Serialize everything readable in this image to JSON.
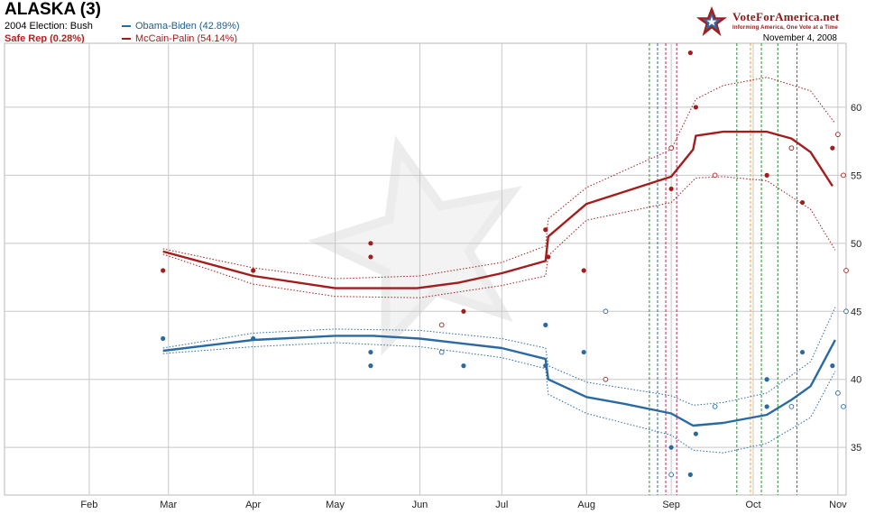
{
  "header": {
    "title": "ALASKA (3)",
    "prev_election": "2004 Election: Bush",
    "rating": "Safe Rep (0.28%)",
    "date": "November 4, 2008"
  },
  "logo": {
    "name": "VoteForAmerica.net",
    "tagline": "Informing America, One Vote at a Time"
  },
  "colors": {
    "dem": "#2b6aa0",
    "rep": "#a31d1d",
    "grid": "#c8c8c8",
    "vline_green": "#2e8b3a",
    "vline_blue": "#2b6aa0",
    "vline_red": "#b0305a",
    "vline_orange": "#f0a020"
  },
  "chart_data": {
    "type": "line",
    "x_axis": {
      "type": "date",
      "range": [
        "2008-01-01",
        "2008-11-04"
      ],
      "tick_labels": [
        "Feb",
        "Mar",
        "Apr",
        "May",
        "Jun",
        "Jul",
        "Aug",
        "Sep",
        "Oct",
        "Nov"
      ],
      "tick_dates": [
        "2008-02-01",
        "2008-03-01",
        "2008-04-01",
        "2008-05-01",
        "2008-06-01",
        "2008-07-01",
        "2008-08-01",
        "2008-09-01",
        "2008-10-01",
        "2008-11-01"
      ]
    },
    "y_axis": {
      "range": [
        31.5,
        64.7
      ],
      "ticks": [
        35,
        40,
        45,
        50,
        55,
        60
      ],
      "position": "right"
    },
    "grid": true,
    "vertical_event_lines": [
      {
        "date": "2008-08-24",
        "color": "green"
      },
      {
        "date": "2008-08-27",
        "color": "blue"
      },
      {
        "date": "2008-08-30",
        "color": "red"
      },
      {
        "date": "2008-09-03",
        "color": "red"
      },
      {
        "date": "2008-09-25",
        "color": "green"
      },
      {
        "date": "2008-09-30",
        "color": "orange"
      },
      {
        "date": "2008-10-04",
        "color": "green"
      },
      {
        "date": "2008-10-10",
        "color": "green"
      },
      {
        "date": "2008-10-17",
        "color": "green"
      }
    ],
    "series": [
      {
        "name": "Obama-Biden (42.89%)",
        "party": "dem",
        "trend": [
          [
            "2008-02-28",
            42.1
          ],
          [
            "2008-04-01",
            42.9
          ],
          [
            "2008-05-01",
            43.2
          ],
          [
            "2008-05-15",
            43.2
          ],
          [
            "2008-06-01",
            43.0
          ],
          [
            "2008-07-01",
            42.3
          ],
          [
            "2008-07-17",
            41.5
          ],
          [
            "2008-07-18",
            40.0
          ],
          [
            "2008-08-01",
            38.7
          ],
          [
            "2008-08-15",
            38.2
          ],
          [
            "2008-09-01",
            37.5
          ],
          [
            "2008-09-09",
            36.6
          ],
          [
            "2008-09-20",
            36.8
          ],
          [
            "2008-10-06",
            37.4
          ],
          [
            "2008-10-15",
            38.5
          ],
          [
            "2008-10-22",
            39.5
          ],
          [
            "2008-10-31",
            42.9
          ]
        ],
        "upper": [
          [
            "2008-02-28",
            42.3
          ],
          [
            "2008-04-01",
            43.4
          ],
          [
            "2008-05-01",
            43.7
          ],
          [
            "2008-06-01",
            43.6
          ],
          [
            "2008-07-01",
            43.0
          ],
          [
            "2008-07-17",
            42.3
          ],
          [
            "2008-07-18",
            41.0
          ],
          [
            "2008-08-01",
            39.8
          ],
          [
            "2008-09-01",
            38.8
          ],
          [
            "2008-09-09",
            38.1
          ],
          [
            "2008-09-20",
            38.3
          ],
          [
            "2008-10-06",
            39.0
          ],
          [
            "2008-10-22",
            41.3
          ],
          [
            "2008-10-31",
            45.3
          ]
        ],
        "lower": [
          [
            "2008-02-28",
            41.9
          ],
          [
            "2008-04-01",
            42.4
          ],
          [
            "2008-05-01",
            42.7
          ],
          [
            "2008-06-01",
            42.4
          ],
          [
            "2008-07-01",
            41.6
          ],
          [
            "2008-07-17",
            40.8
          ],
          [
            "2008-07-18",
            38.9
          ],
          [
            "2008-08-01",
            37.5
          ],
          [
            "2008-09-01",
            35.9
          ],
          [
            "2008-09-09",
            34.8
          ],
          [
            "2008-09-20",
            34.6
          ],
          [
            "2008-10-06",
            35.3
          ],
          [
            "2008-10-22",
            37.2
          ],
          [
            "2008-10-31",
            40.6
          ]
        ],
        "polls_filled": [
          [
            "2008-02-28",
            43
          ],
          [
            "2008-04-01",
            43
          ],
          [
            "2008-05-14",
            42
          ],
          [
            "2008-05-14",
            41
          ],
          [
            "2008-06-17",
            41
          ],
          [
            "2008-07-17",
            44
          ],
          [
            "2008-07-17",
            41
          ],
          [
            "2008-07-31",
            42
          ],
          [
            "2008-09-01",
            35
          ],
          [
            "2008-09-08",
            33
          ],
          [
            "2008-09-10",
            36
          ],
          [
            "2008-10-06",
            40
          ],
          [
            "2008-10-06",
            38
          ],
          [
            "2008-10-19",
            42
          ],
          [
            "2008-10-30",
            41
          ]
        ],
        "polls_open": [
          [
            "2008-06-09",
            42
          ],
          [
            "2008-08-08",
            45
          ],
          [
            "2008-09-01",
            33
          ],
          [
            "2008-09-17",
            38
          ],
          [
            "2008-10-15",
            38
          ],
          [
            "2008-11-01",
            39
          ],
          [
            "2008-11-03",
            38
          ],
          [
            "2008-11-04",
            45
          ]
        ]
      },
      {
        "name": "McCain-Palin (54.14%)",
        "party": "rep",
        "trend": [
          [
            "2008-02-28",
            49.4
          ],
          [
            "2008-04-01",
            47.6
          ],
          [
            "2008-05-01",
            46.7
          ],
          [
            "2008-05-31",
            46.7
          ],
          [
            "2008-06-15",
            47.1
          ],
          [
            "2008-07-01",
            47.8
          ],
          [
            "2008-07-17",
            48.7
          ],
          [
            "2008-07-18",
            50.5
          ],
          [
            "2008-08-01",
            52.9
          ],
          [
            "2008-09-01",
            54.9
          ],
          [
            "2008-09-09",
            56.9
          ],
          [
            "2008-09-10",
            57.9
          ],
          [
            "2008-09-20",
            58.2
          ],
          [
            "2008-10-06",
            58.2
          ],
          [
            "2008-10-15",
            57.7
          ],
          [
            "2008-10-22",
            56.7
          ],
          [
            "2008-10-30",
            54.2
          ]
        ],
        "upper": [
          [
            "2008-02-28",
            49.6
          ],
          [
            "2008-04-01",
            48.2
          ],
          [
            "2008-05-01",
            47.4
          ],
          [
            "2008-06-01",
            47.6
          ],
          [
            "2008-07-01",
            48.6
          ],
          [
            "2008-07-17",
            49.8
          ],
          [
            "2008-07-18",
            51.8
          ],
          [
            "2008-08-01",
            54.1
          ],
          [
            "2008-09-01",
            56.9
          ],
          [
            "2008-09-10",
            60.6
          ],
          [
            "2008-09-20",
            61.6
          ],
          [
            "2008-10-06",
            62.2
          ],
          [
            "2008-10-22",
            61.2
          ],
          [
            "2008-10-31",
            58.8
          ]
        ],
        "lower": [
          [
            "2008-02-28",
            49.2
          ],
          [
            "2008-04-01",
            47.0
          ],
          [
            "2008-05-01",
            46.1
          ],
          [
            "2008-06-01",
            46.0
          ],
          [
            "2008-07-01",
            46.9
          ],
          [
            "2008-07-17",
            47.6
          ],
          [
            "2008-07-18",
            49.1
          ],
          [
            "2008-08-01",
            51.7
          ],
          [
            "2008-09-01",
            53.0
          ],
          [
            "2008-09-10",
            54.8
          ],
          [
            "2008-09-20",
            54.9
          ],
          [
            "2008-10-06",
            54.6
          ],
          [
            "2008-10-22",
            52.5
          ],
          [
            "2008-10-31",
            49.5
          ]
        ],
        "polls_filled": [
          [
            "2008-02-28",
            48
          ],
          [
            "2008-04-01",
            48
          ],
          [
            "2008-05-14",
            50
          ],
          [
            "2008-05-14",
            49
          ],
          [
            "2008-06-17",
            45
          ],
          [
            "2008-07-17",
            51
          ],
          [
            "2008-07-18",
            49
          ],
          [
            "2008-07-31",
            48
          ],
          [
            "2008-09-01",
            54
          ],
          [
            "2008-09-08",
            64
          ],
          [
            "2008-09-10",
            60
          ],
          [
            "2008-10-06",
            55
          ],
          [
            "2008-10-19",
            53
          ],
          [
            "2008-10-30",
            57
          ]
        ],
        "polls_open": [
          [
            "2008-06-09",
            44
          ],
          [
            "2008-08-08",
            40
          ],
          [
            "2008-09-01",
            57
          ],
          [
            "2008-09-17",
            55
          ],
          [
            "2008-10-15",
            57
          ],
          [
            "2008-11-01",
            58
          ],
          [
            "2008-11-03",
            55
          ],
          [
            "2008-11-04",
            48
          ]
        ]
      }
    ]
  }
}
